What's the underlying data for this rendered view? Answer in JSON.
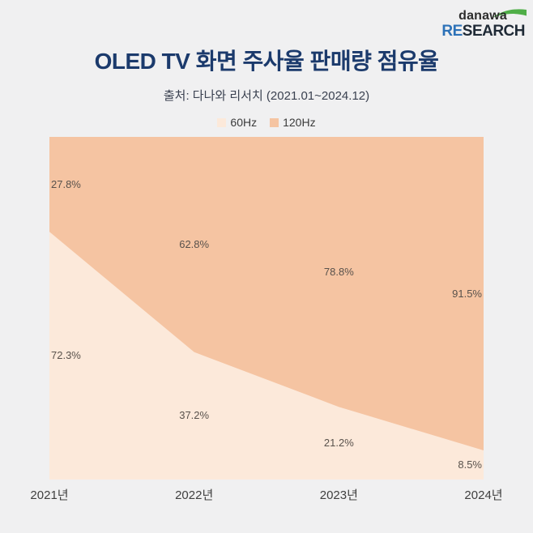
{
  "logo": {
    "brand": "danawa",
    "research_re": "RE",
    "research_rest": "SEARCH",
    "swoosh_color": "#4fae47"
  },
  "header": {
    "title": "OLED TV 화면 주사율 판매량 점유율",
    "source": "출처: 다나와 리서치 (2021.01~2024.12)"
  },
  "legend": [
    {
      "label": "60Hz",
      "color": "#fce9da"
    },
    {
      "label": "120Hz",
      "color": "#f5c4a2"
    }
  ],
  "chart_data": {
    "type": "area",
    "stacked_percent": true,
    "title": "OLED TV 화면 주사율 판매량 점유율",
    "categories": [
      "2021년",
      "2022년",
      "2023년",
      "2024년"
    ],
    "series": [
      {
        "name": "60Hz",
        "color": "#fce9da",
        "values": [
          72.3,
          37.2,
          21.2,
          8.5
        ]
      },
      {
        "name": "120Hz",
        "color": "#f5c4a2",
        "values": [
          27.8,
          62.8,
          78.8,
          91.5
        ]
      }
    ],
    "value_suffix": "%",
    "ylim": [
      0,
      100
    ],
    "grid": false,
    "legend_position": "top",
    "xlabel": "",
    "ylabel": ""
  },
  "colors": {
    "background": "#f0f0f1",
    "title_text": "#1b3a6c",
    "subtitle_text": "#3a4150",
    "data_label_text": "#59524c",
    "axis_label_text": "#3f3f3f"
  }
}
